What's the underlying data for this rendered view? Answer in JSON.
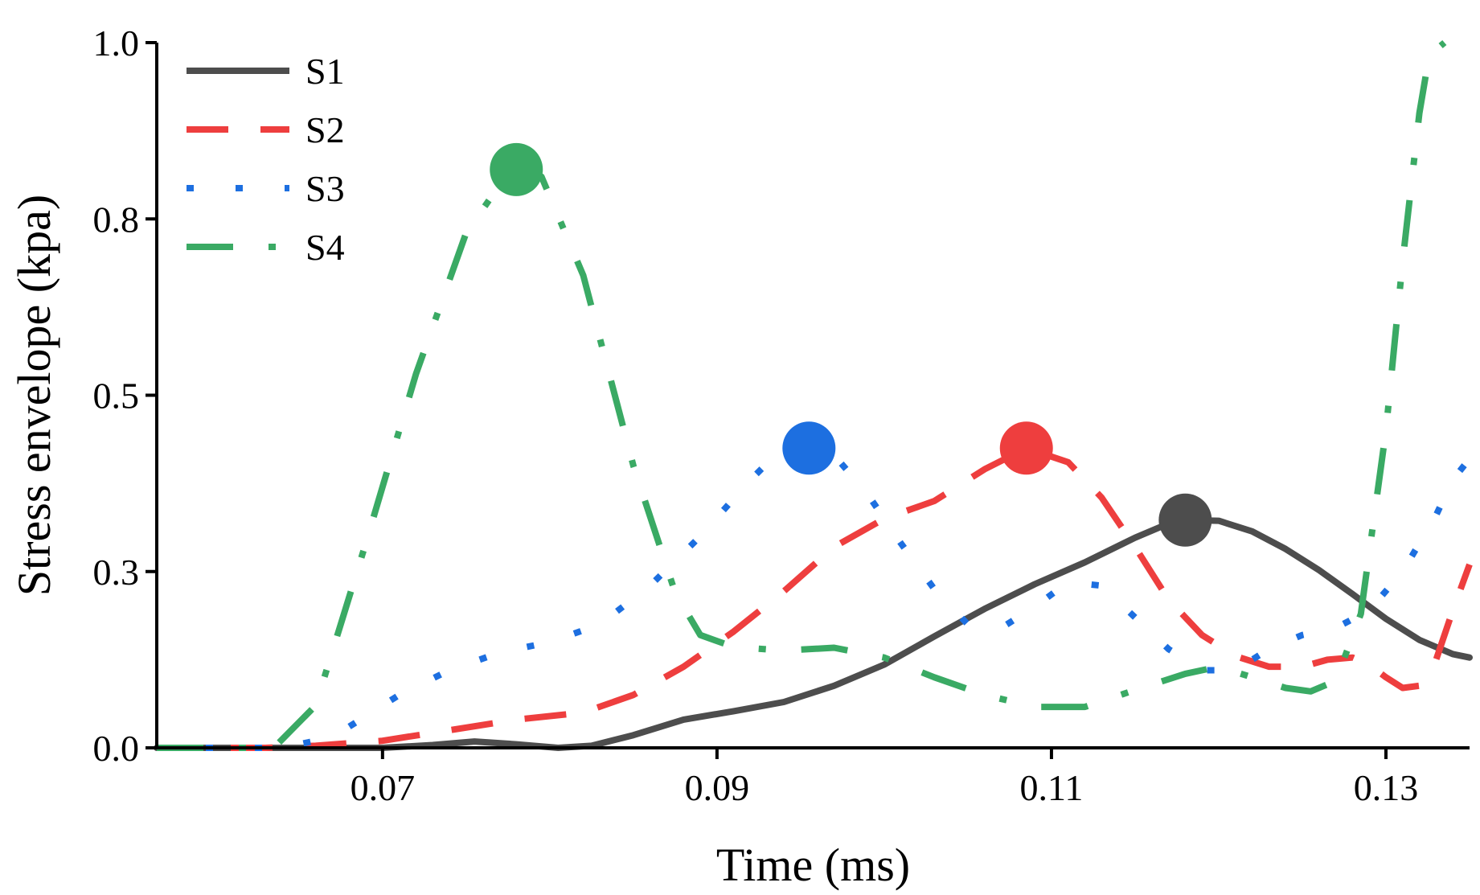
{
  "chart_data": {
    "type": "line",
    "xlabel": "Time (ms)",
    "ylabel": "Stress envelope (kpa)",
    "xlim": [
      0.0565,
      0.135
    ],
    "ylim": [
      0.0,
      1.0
    ],
    "xticks": [
      0.07,
      0.09,
      0.11,
      0.13
    ],
    "xtick_labels": [
      "0.07",
      "0.09",
      "0.11",
      "0.13"
    ],
    "yticks": [
      0.0,
      0.25,
      0.5,
      0.75,
      1.0
    ],
    "ytick_labels": [
      "0.0",
      "0.3",
      "0.5",
      "0.8",
      "1.0"
    ],
    "legend_position": "top-left",
    "series": [
      {
        "name": "S1",
        "color": "#4d4d4d",
        "style": "solid",
        "x": [
          0.0565,
          0.065,
          0.07,
          0.073,
          0.0755,
          0.078,
          0.0805,
          0.0825,
          0.085,
          0.088,
          0.091,
          0.094,
          0.097,
          0.1,
          0.103,
          0.106,
          0.109,
          0.112,
          0.115,
          0.117,
          0.118,
          0.12,
          0.122,
          0.124,
          0.126,
          0.128,
          0.13,
          0.132,
          0.134,
          0.135
        ],
        "values": [
          0.0,
          0.0,
          0.0,
          0.004,
          0.009,
          0.005,
          0.0,
          0.003,
          0.018,
          0.04,
          0.052,
          0.065,
          0.088,
          0.118,
          0.158,
          0.197,
          0.232,
          0.263,
          0.298,
          0.318,
          0.323,
          0.322,
          0.307,
          0.282,
          0.252,
          0.218,
          0.183,
          0.153,
          0.133,
          0.128
        ]
      },
      {
        "name": "S2",
        "color": "#ee3e3e",
        "style": "dashed",
        "x": [
          0.0565,
          0.063,
          0.066,
          0.07,
          0.074,
          0.078,
          0.082,
          0.085,
          0.088,
          0.091,
          0.094,
          0.097,
          0.1,
          0.103,
          0.106,
          0.1085,
          0.111,
          0.113,
          0.115,
          0.117,
          0.119,
          0.121,
          0.123,
          0.125,
          0.1265,
          0.128,
          0.129,
          0.13,
          0.131,
          0.132,
          0.133,
          0.134,
          0.135
        ],
        "values": [
          0.0,
          0.0,
          0.003,
          0.01,
          0.025,
          0.04,
          0.05,
          0.075,
          0.115,
          0.165,
          0.222,
          0.285,
          0.325,
          0.35,
          0.395,
          0.425,
          0.405,
          0.355,
          0.285,
          0.21,
          0.16,
          0.13,
          0.115,
          0.115,
          0.125,
          0.128,
          0.118,
          0.1,
          0.085,
          0.088,
          0.125,
          0.195,
          0.26
        ]
      },
      {
        "name": "S3",
        "color": "#1d6fe0",
        "style": "dotted",
        "x": [
          0.0565,
          0.064,
          0.066,
          0.068,
          0.071,
          0.074,
          0.077,
          0.08,
          0.083,
          0.086,
          0.089,
          0.092,
          0.0935,
          0.0955,
          0.097,
          0.099,
          0.101,
          0.103,
          0.105,
          0.107,
          0.109,
          0.111,
          0.113,
          0.115,
          0.117,
          0.119,
          0.121,
          0.123,
          0.125,
          0.127,
          0.129,
          0.131,
          0.133,
          0.134,
          0.135
        ],
        "values": [
          0.0,
          0.0,
          0.01,
          0.03,
          0.075,
          0.11,
          0.135,
          0.15,
          0.175,
          0.23,
          0.3,
          0.38,
          0.415,
          0.425,
          0.415,
          0.36,
          0.29,
          0.225,
          0.175,
          0.17,
          0.2,
          0.235,
          0.23,
          0.185,
          0.14,
          0.11,
          0.11,
          0.14,
          0.16,
          0.17,
          0.195,
          0.25,
          0.33,
          0.38,
          0.41
        ]
      },
      {
        "name": "S4",
        "color": "#3aaa64",
        "style": "dashdot",
        "x": [
          0.0565,
          0.0635,
          0.066,
          0.069,
          0.072,
          0.075,
          0.0775,
          0.078,
          0.0795,
          0.082,
          0.085,
          0.0875,
          0.089,
          0.091,
          0.094,
          0.097,
          0.1,
          0.103,
          0.106,
          0.109,
          0.112,
          0.115,
          0.118,
          0.12,
          0.122,
          0.124,
          0.1255,
          0.127,
          0.1285,
          0.13,
          0.131,
          0.132,
          0.1325,
          0.133,
          0.1335
        ],
        "values": [
          0.0,
          0.0,
          0.06,
          0.29,
          0.53,
          0.73,
          0.815,
          0.82,
          0.81,
          0.67,
          0.4,
          0.22,
          0.16,
          0.143,
          0.138,
          0.142,
          0.128,
          0.1,
          0.075,
          0.058,
          0.058,
          0.082,
          0.105,
          0.115,
          0.1,
          0.085,
          0.08,
          0.095,
          0.19,
          0.45,
          0.69,
          0.9,
          0.97,
          0.99,
          1.0
        ]
      }
    ],
    "markers": [
      {
        "series": "S1",
        "x": 0.118,
        "y": 0.323,
        "color": "#4d4d4d"
      },
      {
        "series": "S2",
        "x": 0.1085,
        "y": 0.425,
        "color": "#ee3e3e"
      },
      {
        "series": "S3",
        "x": 0.0955,
        "y": 0.425,
        "color": "#1d6fe0"
      },
      {
        "series": "S4",
        "x": 0.078,
        "y": 0.82,
        "color": "#3aaa64"
      }
    ]
  }
}
